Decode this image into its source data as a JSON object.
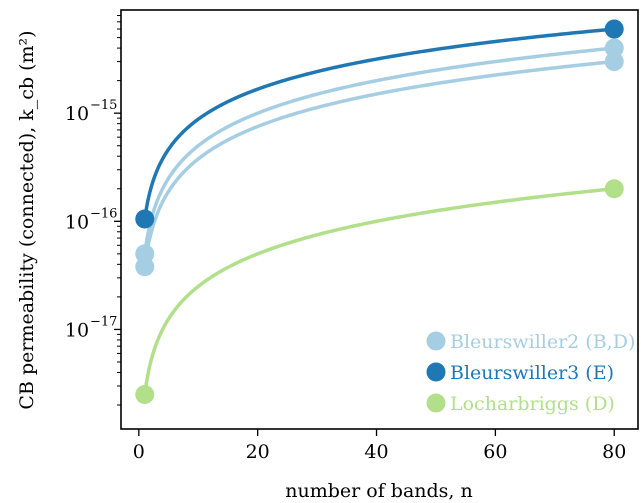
{
  "chart_data": {
    "type": "line",
    "xlabel": "number of bands, n",
    "ylabel": "CB permeability (connected), k_cb (m²)",
    "xlim": [
      -3,
      84
    ],
    "ylog": true,
    "ylim": [
      1.2e-18,
      9e-15
    ],
    "x_ticks": [
      0,
      20,
      40,
      60,
      80
    ],
    "x_tick_labels": [
      "0",
      "20",
      "40",
      "60",
      "80"
    ],
    "y_ticks": [
      1e-17,
      1e-16,
      1e-15
    ],
    "y_tick_labels": [
      "10",
      "10",
      "10"
    ],
    "y_tick_exponents": [
      "−17",
      "−16",
      "−15"
    ],
    "grid": false,
    "legend_position": "bottom-right",
    "series": [
      {
        "name": "Bleurswiller2 (B,D)",
        "color": "#a6cee3",
        "curves": [
          {
            "x": [
              1,
              80
            ],
            "y": [
              5e-17,
              4e-15
            ]
          },
          {
            "x": [
              1,
              80
            ],
            "y": [
              3.8e-17,
              3e-15
            ]
          }
        ],
        "markers": [
          {
            "x": 1,
            "y": 5e-17
          },
          {
            "x": 1,
            "y": 3.8e-17
          },
          {
            "x": 80,
            "y": 4e-15
          },
          {
            "x": 80,
            "y": 3e-15
          }
        ]
      },
      {
        "name": "Bleurswiller3 (E)",
        "color": "#1f78b4",
        "curves": [
          {
            "x": [
              1,
              80
            ],
            "y": [
              1.05e-16,
              6e-15
            ]
          }
        ],
        "markers": [
          {
            "x": 1,
            "y": 1.05e-16
          },
          {
            "x": 80,
            "y": 6e-15
          }
        ]
      },
      {
        "name": "Locharbriggs (D)",
        "color": "#b2df8a",
        "curves": [
          {
            "x": [
              1,
              80
            ],
            "y": [
              2.5e-18,
              2e-16
            ]
          }
        ],
        "markers": [
          {
            "x": 1,
            "y": 2.5e-18
          },
          {
            "x": 80,
            "y": 2e-16
          }
        ]
      }
    ]
  }
}
